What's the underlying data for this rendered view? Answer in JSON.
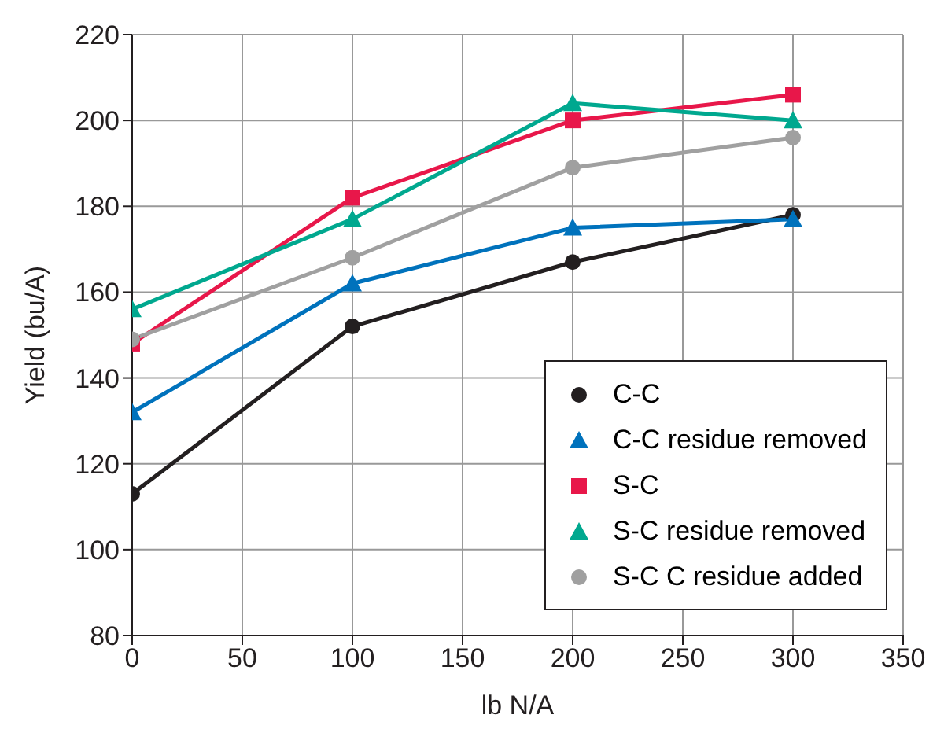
{
  "chart_data": {
    "type": "line",
    "xlabel": "lb N/A",
    "ylabel": "Yield (bu/A)",
    "x": [
      0,
      100,
      200,
      300
    ],
    "xlim": [
      0,
      350
    ],
    "xticks": [
      0,
      50,
      100,
      150,
      200,
      250,
      300,
      350
    ],
    "ylim": [
      80,
      220
    ],
    "yticks": [
      80,
      100,
      120,
      140,
      160,
      180,
      200,
      220
    ],
    "grid": true,
    "legend": "bottom right",
    "line_style": "solid",
    "series": [
      {
        "name": "C-C",
        "color": "#231f20",
        "marker": "circle",
        "values": [
          113,
          152,
          167,
          178
        ]
      },
      {
        "name": "C-C residue removed",
        "color": "#0072bc",
        "marker": "triangle",
        "values": [
          132,
          162,
          175,
          177
        ]
      },
      {
        "name": "S-C",
        "color": "#e8174a",
        "marker": "square",
        "values": [
          148,
          182,
          200,
          206
        ]
      },
      {
        "name": "S-C residue removed",
        "color": "#00a88f",
        "marker": "triangle",
        "values": [
          156,
          177,
          204,
          200
        ]
      },
      {
        "name": "S-C C residue added",
        "color": "#a0a0a0",
        "marker": "circle",
        "values": [
          149,
          168,
          189,
          196
        ]
      }
    ]
  }
}
